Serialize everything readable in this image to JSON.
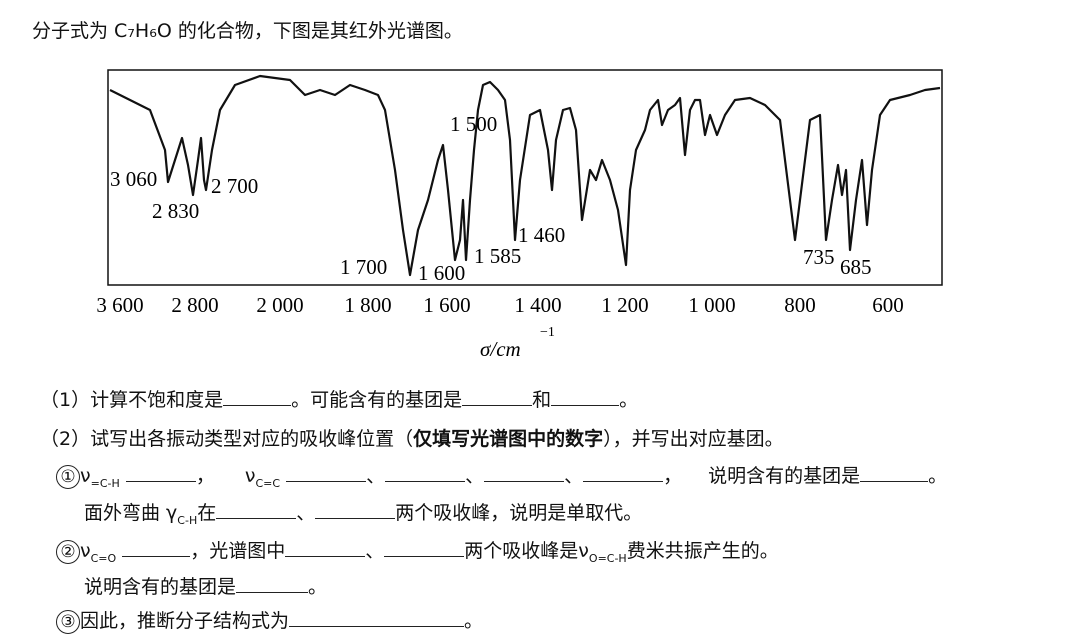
{
  "intro": "分子式为 C₇H₆O 的化合物，下图是其红外光谱图。",
  "spectrum": {
    "xticks": [
      "3 600",
      "2 800",
      "2 000",
      "1 800",
      "1 600",
      "1 400",
      "1 200",
      "1 000",
      "800",
      "600"
    ],
    "peaks": [
      "3 060",
      "2 830",
      "2 700",
      "1 500",
      "1 460",
      "1 585",
      "1 700",
      "1 600",
      "735",
      "685"
    ],
    "xlabel": "σ/cm",
    "xlabel_sup": "−1"
  },
  "lines": [
    [
      "（1）计算不饱和度是",
      "。可能含有的基团是",
      "和",
      "。"
    ],
    [
      "（2）试写出各振动类型对应的吸收峰位置（",
      "仅填写光谱图中的数字",
      "），并写出对应基团。"
    ],
    [
      "①",
      "ν",
      "=C-H",
      "，",
      "ν",
      "C=C",
      "、",
      "、",
      "、",
      "，",
      "说明含有的基团是",
      "。"
    ],
    [
      "面外弯曲 γ",
      "C-H",
      "在",
      "、",
      "两个吸收峰，说明是单取代。"
    ],
    [
      "②",
      "ν",
      "C=O",
      "，光谱图中",
      "、",
      "两个吸收峰是",
      "ν",
      "O=C-H",
      "费米共振产生的。"
    ],
    [
      "说明含有的基团是",
      "。"
    ],
    [
      "③",
      "因此，推断分子结构式为",
      "。"
    ]
  ]
}
